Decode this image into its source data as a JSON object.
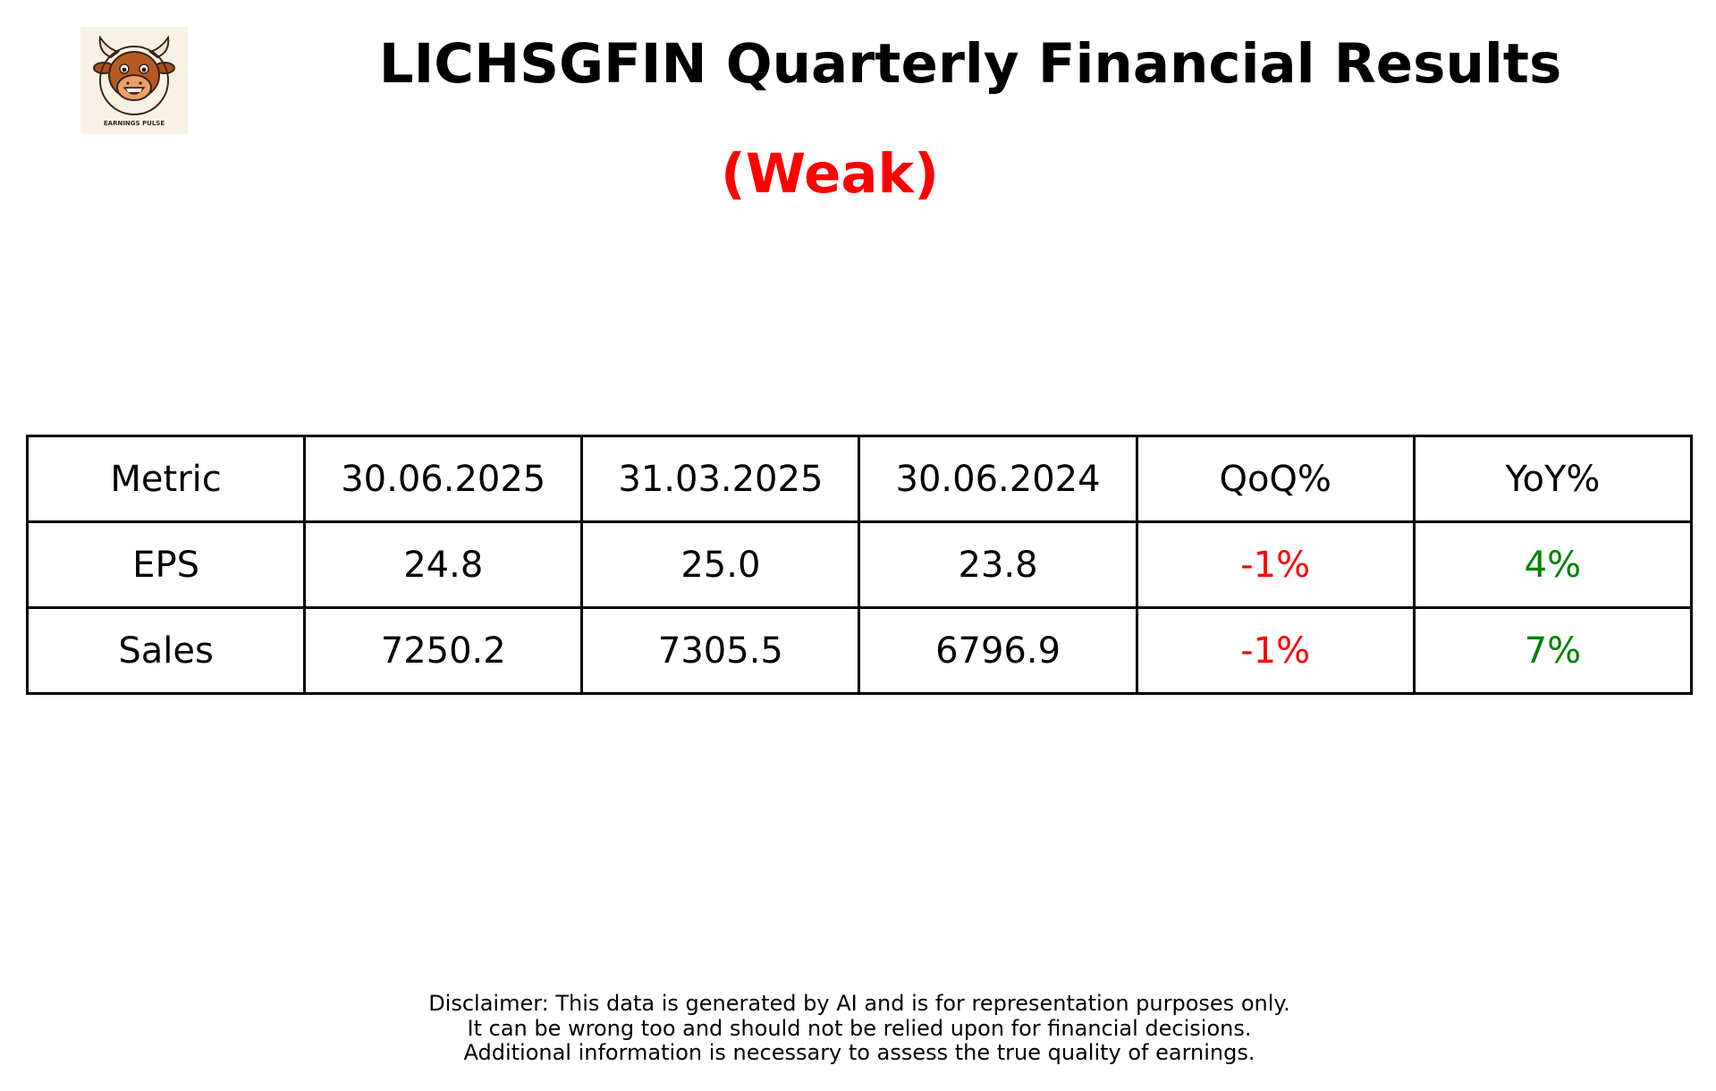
{
  "logo": {
    "icon": "bull-mascot-icon",
    "text": "EARNINGS PULSE"
  },
  "header": {
    "title": "LICHSGFIN Quarterly Financial Results",
    "rating": "(Weak)"
  },
  "colors": {
    "rating": "#ff0000",
    "negative": "#ff0000",
    "positive": "#008000",
    "text": "#000000",
    "logo_background": "#f8f1e6"
  },
  "chart_data": {
    "type": "table",
    "title": "LICHSGFIN Quarterly Financial Results",
    "subtitle": "(Weak)",
    "columns": [
      "Metric",
      "30.06.2025",
      "31.03.2025",
      "30.06.2024",
      "QoQ%",
      "YoY%"
    ],
    "rows": [
      {
        "cells": [
          "EPS",
          "24.8",
          "25.0",
          "23.8",
          "-1%",
          "4%"
        ],
        "tones": [
          "neutral",
          "neutral",
          "neutral",
          "neutral",
          "negative",
          "positive"
        ]
      },
      {
        "cells": [
          "Sales",
          "7250.2",
          "7305.5",
          "6796.9",
          "-1%",
          "7%"
        ],
        "tones": [
          "neutral",
          "neutral",
          "neutral",
          "neutral",
          "negative",
          "positive"
        ]
      }
    ]
  },
  "disclaimer": {
    "lines": [
      "Disclaimer: This data is generated by AI and is for representation purposes only.",
      "It can be wrong too and should not be relied upon for financial decisions.",
      "Additional information is necessary to assess the true quality of earnings."
    ]
  }
}
